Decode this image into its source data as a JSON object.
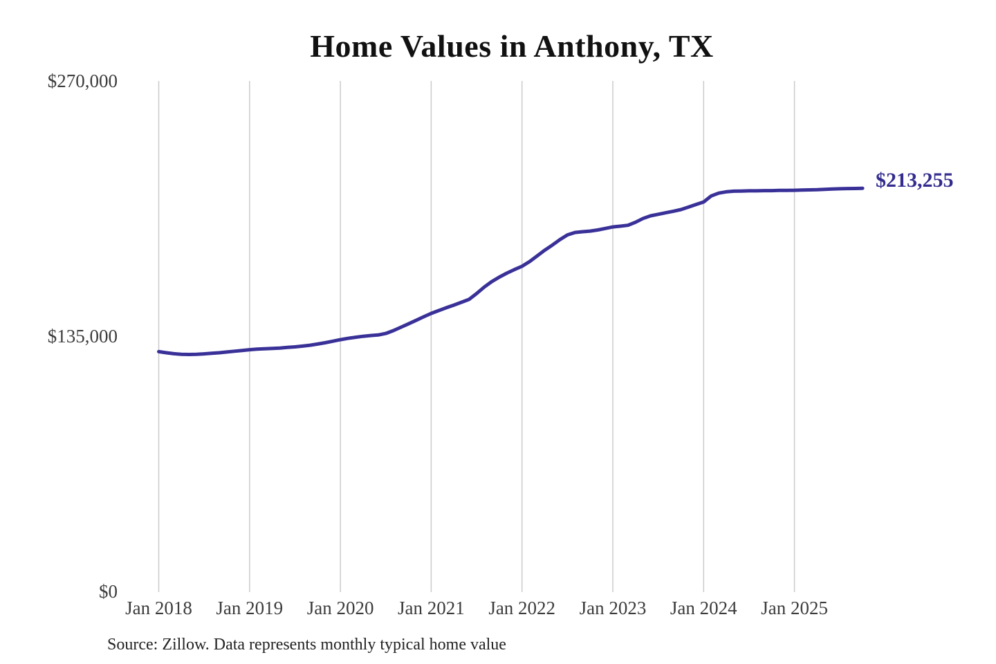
{
  "chart_data": {
    "type": "line",
    "title": "Home Values in Anthony, TX",
    "source": "Source: Zillow. Data represents monthly typical home value",
    "end_label": "$213,255",
    "end_value": 213255,
    "xlabel": "",
    "ylabel": "",
    "ylim": [
      0,
      270000
    ],
    "grid": "vertical-only",
    "legend": "none",
    "x_ticks": [
      "Jan 2018",
      "Jan 2019",
      "Jan 2020",
      "Jan 2021",
      "Jan 2022",
      "Jan 2023",
      "Jan 2024",
      "Jan 2025"
    ],
    "y_ticks": [
      {
        "label": "$270,000",
        "value": 270000
      },
      {
        "label": "$135,000",
        "value": 135000
      },
      {
        "label": "$0",
        "value": 0
      }
    ],
    "series": [
      {
        "name": "Monthly typical home value",
        "start_month": "2018-01",
        "end_month": "2025-10",
        "values": [
          126900,
          126300,
          125800,
          125500,
          125400,
          125500,
          125700,
          126000,
          126300,
          126700,
          127100,
          127500,
          127900,
          128200,
          128400,
          128600,
          128800,
          129100,
          129400,
          129800,
          130300,
          130900,
          131600,
          132400,
          133200,
          133900,
          134500,
          135000,
          135400,
          135700,
          136500,
          138000,
          139800,
          141600,
          143400,
          145300,
          147100,
          148600,
          150100,
          151500,
          153000,
          154500,
          157600,
          161000,
          163900,
          166300,
          168400,
          170300,
          172000,
          174500,
          177500,
          180500,
          183200,
          186100,
          188600,
          189900,
          190300,
          190600,
          191200,
          192000,
          192800,
          193200,
          193700,
          195300,
          197300,
          198700,
          199500,
          200300,
          201100,
          202000,
          203300,
          204700,
          206000,
          209200,
          210700,
          211400,
          211700,
          211800,
          211900,
          211900,
          212000,
          212000,
          212100,
          212100,
          212200,
          212300,
          212400,
          212500,
          212700,
          212900,
          213000,
          213100,
          213150,
          213255
        ]
      }
    ],
    "colors": {
      "line": "#3a3198",
      "end_label": "#332c8e",
      "grid": "#cbcbcb",
      "title": "#111111",
      "tick_label": "#3c3c3c",
      "source": "#232323",
      "background": "#ffffff"
    }
  }
}
